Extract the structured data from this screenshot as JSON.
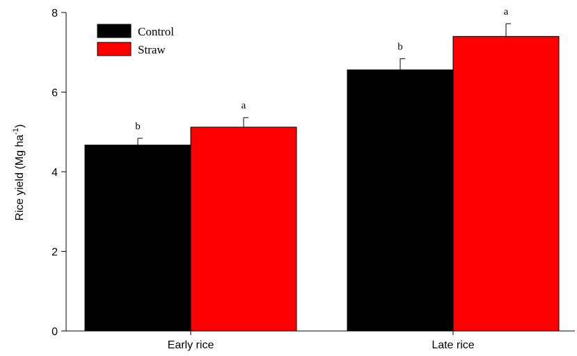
{
  "chart_data": {
    "type": "bar",
    "categories": [
      "Early rice",
      "Late rice"
    ],
    "series": [
      {
        "name": "Control",
        "color": "#000000",
        "values": [
          4.67,
          6.56
        ],
        "errors": [
          0.17,
          0.28
        ],
        "significance": [
          "b",
          "b"
        ]
      },
      {
        "name": "Straw",
        "color": "#ff0000",
        "values": [
          5.12,
          7.4
        ],
        "errors": [
          0.24,
          0.32
        ],
        "significance": [
          "a",
          "a"
        ]
      }
    ],
    "title": "",
    "xlabel": "",
    "ylabel": {
      "text": "Rice yield  (Mg ha",
      "superscript": "-1",
      "closing": ")"
    },
    "ylim": [
      0,
      8
    ],
    "yticks": [
      "0",
      "2",
      "4",
      "6",
      "8"
    ],
    "grid": false,
    "legend_position": "top-left"
  }
}
